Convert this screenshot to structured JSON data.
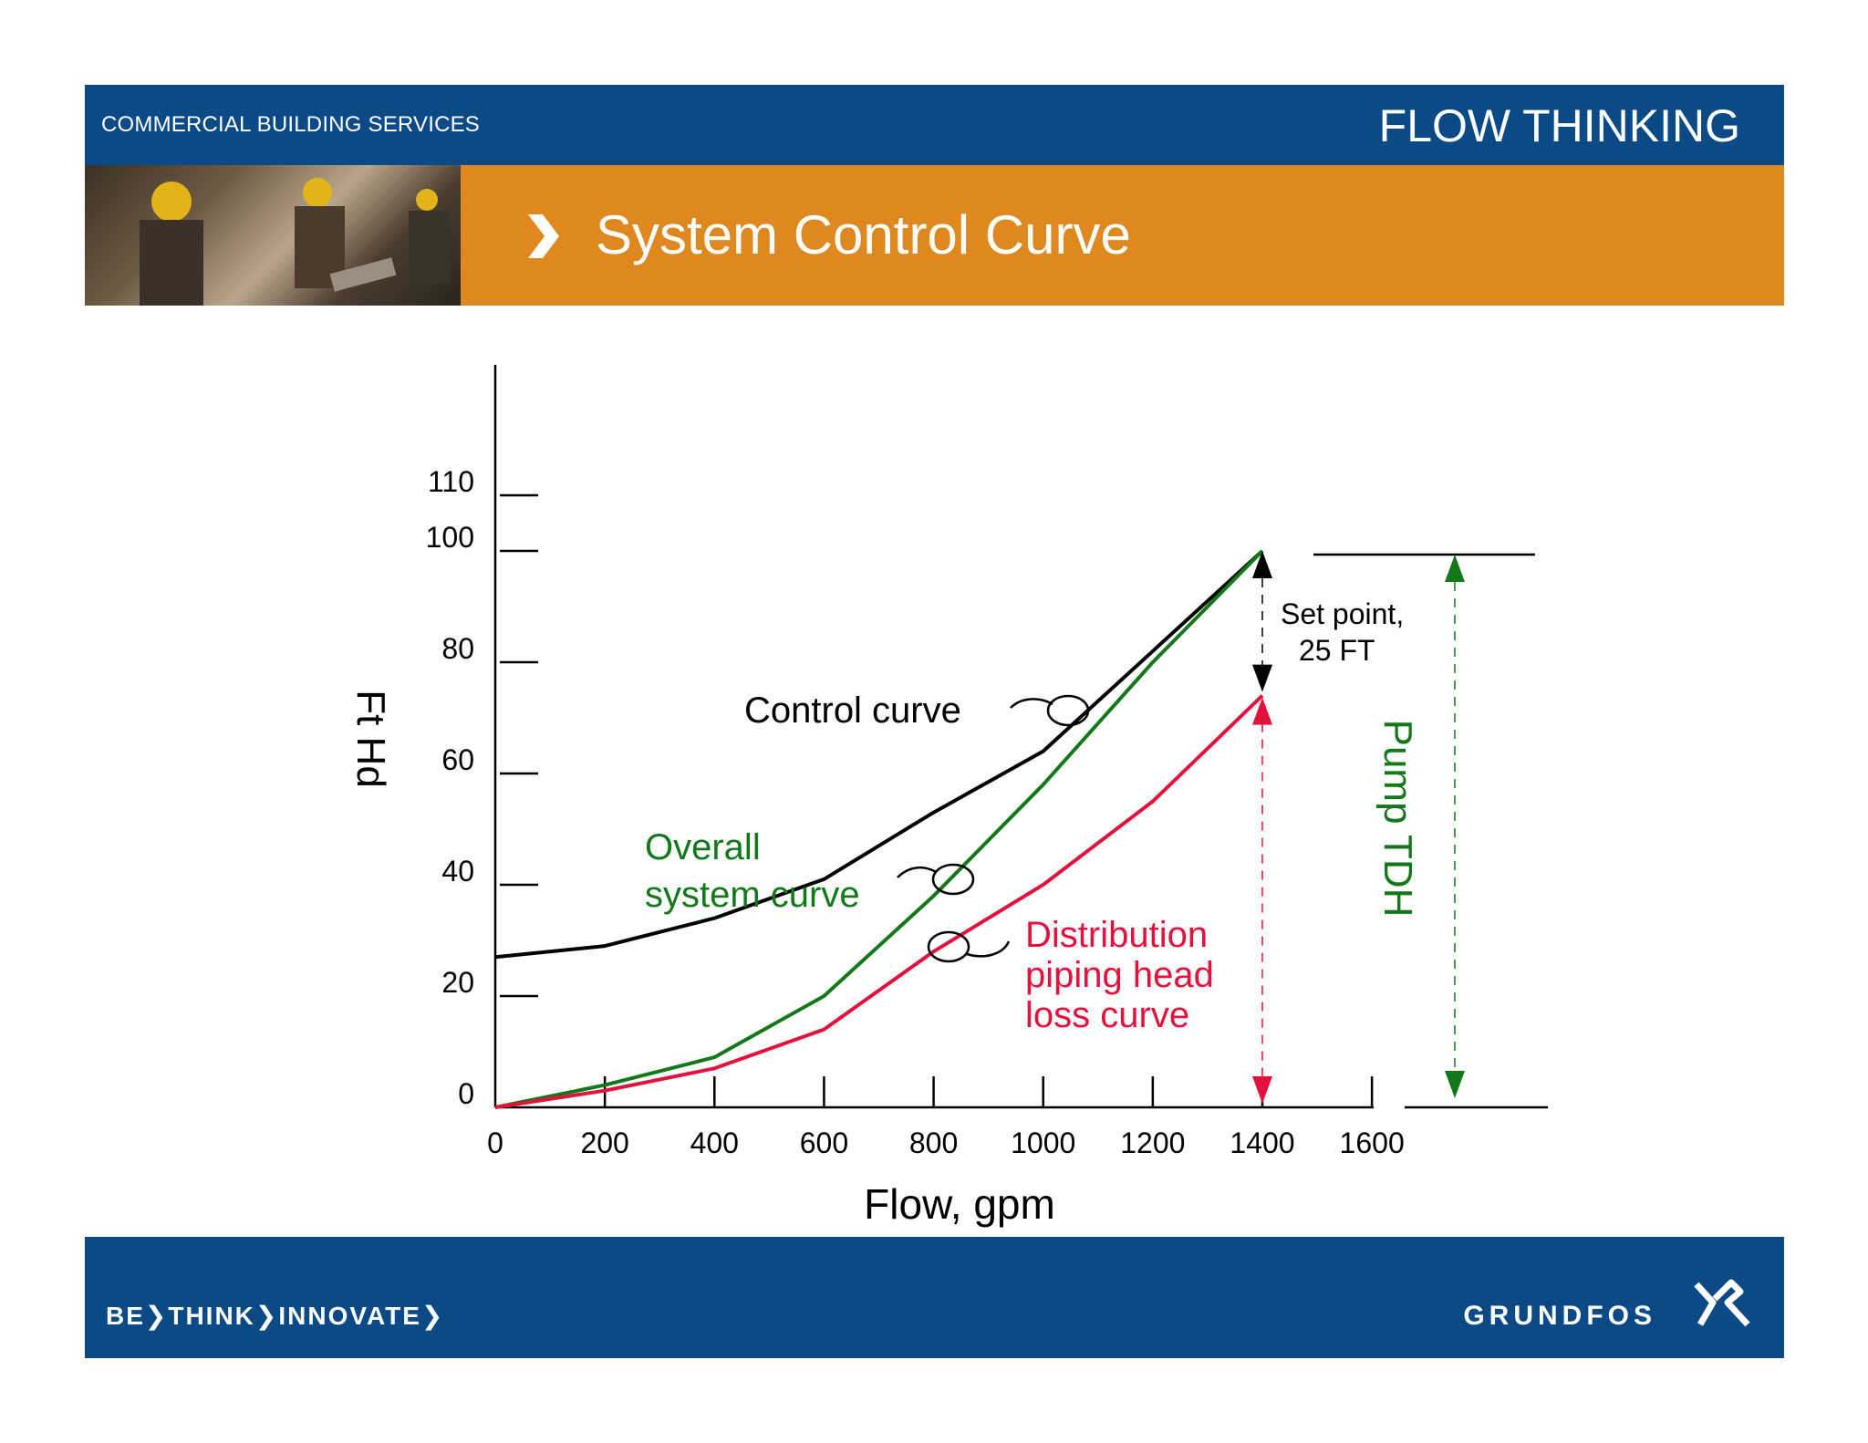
{
  "header": {
    "left_label": "COMMERCIAL BUILDING SERVICES",
    "right_label": "FLOW THINKING"
  },
  "title_bar": {
    "title": "System Control Curve"
  },
  "footer": {
    "motto": "BE❯THINK❯INNOVATE❯",
    "brand": "GRUNDFOS"
  },
  "chart_data": {
    "type": "line",
    "xlabel": "Flow, gpm",
    "ylabel": "Ft Hd",
    "xlim": [
      0,
      1600
    ],
    "ylim": [
      0,
      110
    ],
    "x_ticks": [
      0,
      200,
      400,
      600,
      800,
      1000,
      1200,
      1400,
      1600
    ],
    "y_ticks": [
      0,
      20,
      40,
      60,
      80,
      100,
      110
    ],
    "colors": {
      "control": "#000000",
      "system": "#13781a",
      "distribution": "#e3123c"
    },
    "series": [
      {
        "key": "control",
        "name": "Control curve",
        "points": [
          [
            0,
            27
          ],
          [
            200,
            29
          ],
          [
            400,
            34
          ],
          [
            600,
            41
          ],
          [
            800,
            53
          ],
          [
            1000,
            64
          ],
          [
            1200,
            82
          ],
          [
            1400,
            100
          ]
        ]
      },
      {
        "key": "system",
        "name": "Overall system curve",
        "points": [
          [
            0,
            0
          ],
          [
            200,
            4
          ],
          [
            400,
            9
          ],
          [
            600,
            20
          ],
          [
            800,
            38
          ],
          [
            1000,
            58
          ],
          [
            1200,
            80
          ],
          [
            1400,
            100
          ]
        ]
      },
      {
        "key": "distribution",
        "name": "Distribution piping head loss curve",
        "points": [
          [
            0,
            0
          ],
          [
            200,
            3
          ],
          [
            400,
            7
          ],
          [
            600,
            14
          ],
          [
            800,
            28
          ],
          [
            1000,
            40
          ],
          [
            1200,
            55
          ],
          [
            1400,
            74
          ]
        ]
      }
    ],
    "annotations": {
      "setpoint_label_1": "Set point,",
      "setpoint_label_2": "25 FT",
      "pump_tdh": "Pump TDH",
      "control_label": "Control curve",
      "system_label_1": "Overall",
      "system_label_2": "system curve",
      "dist_label_1": "Distribution",
      "dist_label_2": "piping head",
      "dist_label_3": "loss curve"
    }
  }
}
